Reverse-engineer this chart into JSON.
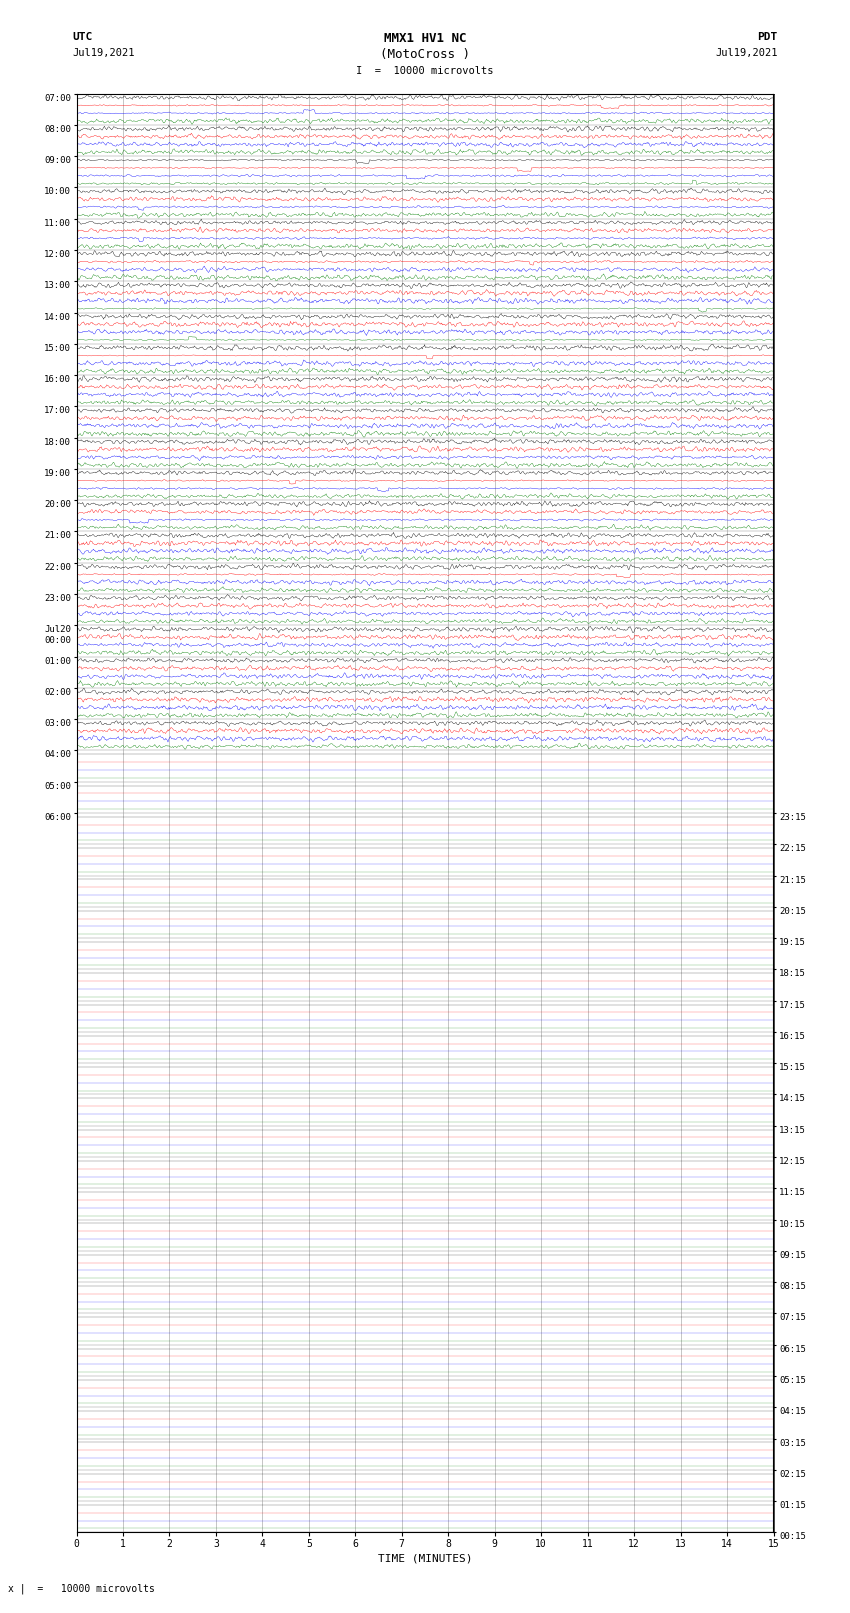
{
  "title_line1": "MMX1 HV1 NC",
  "title_line2": "(MotoCross )",
  "scale_label": "I  =  10000 microvolts",
  "scale_label_bottom": "x |  =   10000 microvolts",
  "left_header": "UTC",
  "left_date": "Jul19,2021",
  "right_header": "PDT",
  "right_date": "Jul19,2021",
  "xlabel": "TIME (MINUTES)",
  "n_rows": 46,
  "traces_per_row": 4,
  "row_colors": [
    "black",
    "red",
    "blue",
    "green"
  ],
  "minutes_per_row": 15,
  "fig_width": 8.5,
  "fig_height": 16.13,
  "bg_color": "white",
  "grid_color": "#999999",
  "left_times_utc": [
    "07:00",
    "08:00",
    "09:00",
    "10:00",
    "11:00",
    "12:00",
    "13:00",
    "14:00",
    "15:00",
    "16:00",
    "17:00",
    "18:00",
    "19:00",
    "20:00",
    "21:00",
    "22:00",
    "23:00",
    "Jul20\n00:00",
    "01:00",
    "02:00",
    "03:00",
    "04:00",
    "05:00",
    "06:00"
  ],
  "right_times_pdt": [
    "00:15",
    "01:15",
    "02:15",
    "03:15",
    "04:15",
    "05:15",
    "06:15",
    "07:15",
    "08:15",
    "09:15",
    "10:15",
    "11:15",
    "12:15",
    "13:15",
    "14:15",
    "15:15",
    "16:15",
    "17:15",
    "18:15",
    "19:15",
    "20:15",
    "21:15",
    "22:15",
    "23:15"
  ],
  "active_rows": 21,
  "seed": 42
}
